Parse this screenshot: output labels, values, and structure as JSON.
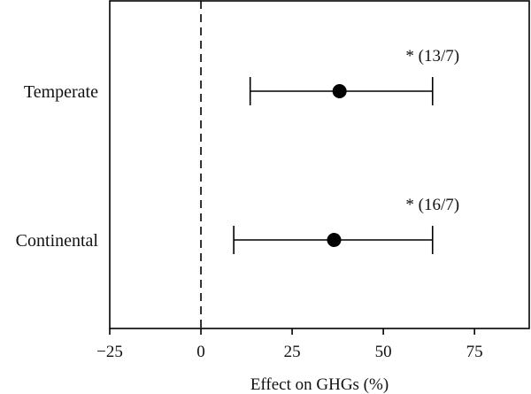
{
  "chart_data": {
    "type": "forest",
    "xlabel": "Effect on GHGs (%)",
    "xlim": [
      -25,
      90
    ],
    "xticks": [
      -25,
      0,
      25,
      50,
      75
    ],
    "xtick_labels": [
      "−25",
      "0",
      "25",
      "50",
      "75"
    ],
    "reference_line": 0,
    "categories": [
      "Temperate",
      "Continental"
    ],
    "points": [
      {
        "category": "Temperate",
        "mean": 38,
        "lower": 13.5,
        "upper": 63.5,
        "annotation": "* (13/7)"
      },
      {
        "category": "Continental",
        "mean": 36.5,
        "lower": 9,
        "upper": 63.5,
        "annotation": "* (16/7)"
      }
    ],
    "colors": {
      "marker": "#000000",
      "line": "#000000"
    }
  }
}
